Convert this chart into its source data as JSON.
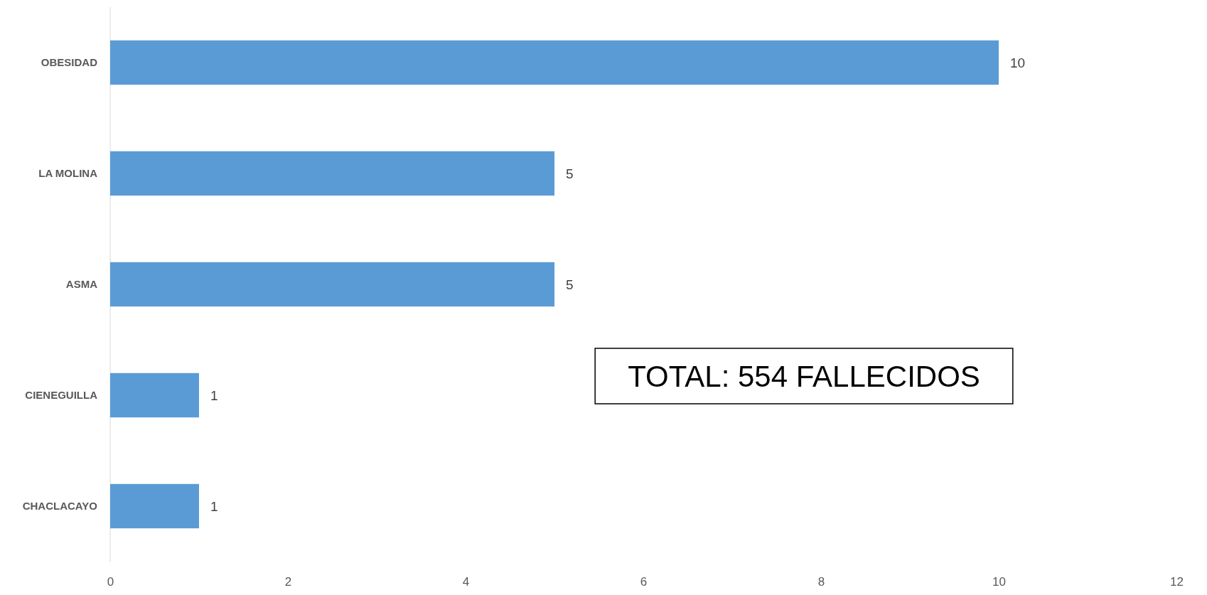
{
  "chart_data": {
    "type": "bar",
    "orientation": "horizontal",
    "categories": [
      "OBESIDAD",
      "LA MOLINA",
      "ASMA",
      "CIENEGUILLA",
      "CHACLACAYO"
    ],
    "values": [
      10,
      5,
      5,
      1,
      1
    ],
    "color": "#5b9bd5",
    "xlim": [
      0,
      12
    ],
    "xticks": [
      0,
      2,
      4,
      6,
      8,
      10,
      12
    ],
    "grid": false,
    "data_labels": true,
    "annotations": [
      "TOTAL: 554 FALLECIDOS"
    ]
  }
}
